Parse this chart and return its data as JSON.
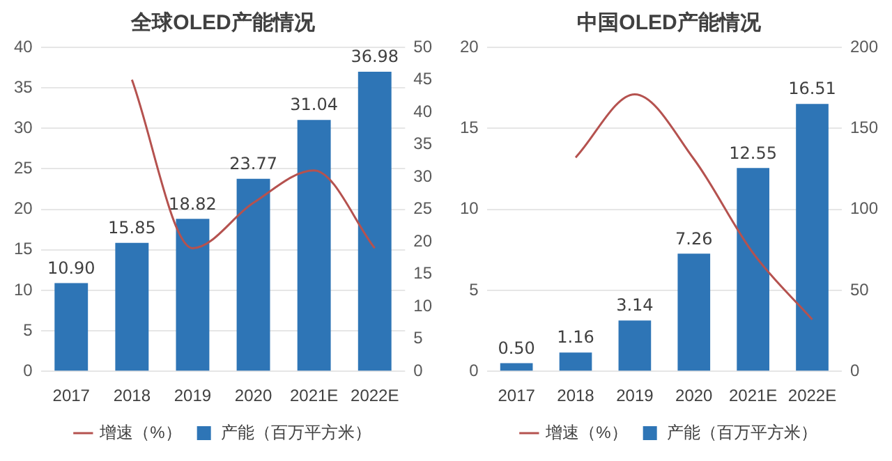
{
  "chart_data": [
    {
      "type": "bar",
      "title": "全球OLED产能情况",
      "categories": [
        "2017",
        "2018",
        "2019",
        "2020",
        "2021E",
        "2022E"
      ],
      "series": [
        {
          "name": "产能（百万平方米）",
          "color": "#2e75b6",
          "values": [
            10.9,
            15.85,
            18.82,
            23.77,
            31.04,
            36.98
          ],
          "value_labels": [
            "10.90",
            "15.85",
            "18.82",
            "23.77",
            "31.04",
            "36.98"
          ]
        },
        {
          "name": "增速（%）",
          "type": "line",
          "axis": "y2",
          "color": "#b5524f",
          "values": [
            null,
            45,
            19,
            26,
            31,
            19
          ]
        }
      ],
      "ylim": [
        0,
        40
      ],
      "yticks": [
        0,
        5,
        10,
        15,
        20,
        25,
        30,
        35,
        40
      ],
      "y2lim": [
        0,
        50
      ],
      "y2ticks": [
        0,
        5,
        10,
        15,
        20,
        25,
        30,
        35,
        40,
        45,
        50
      ],
      "grid": "y",
      "legend": "bottom",
      "marker": "none"
    },
    {
      "type": "bar",
      "title": "中国OLED产能情况",
      "categories": [
        "2017",
        "2018",
        "2019",
        "2020",
        "2021E",
        "2022E"
      ],
      "series": [
        {
          "name": "产能（百万平方米）",
          "color": "#2e75b6",
          "values": [
            0.5,
            1.16,
            3.14,
            7.26,
            12.55,
            16.51
          ],
          "value_labels": [
            "0.50",
            "1.16",
            "3.14",
            "7.26",
            "12.55",
            "16.51"
          ]
        },
        {
          "name": "增速（%）",
          "type": "line",
          "axis": "y2",
          "color": "#b5524f",
          "values": [
            null,
            132,
            171,
            131,
            73,
            32
          ]
        }
      ],
      "ylim": [
        0,
        20
      ],
      "yticks": [
        0,
        5,
        10,
        15,
        20
      ],
      "y2lim": [
        0,
        200
      ],
      "y2ticks": [
        0,
        50,
        100,
        150,
        200
      ],
      "grid": "y",
      "legend": "bottom",
      "marker": "none"
    }
  ]
}
